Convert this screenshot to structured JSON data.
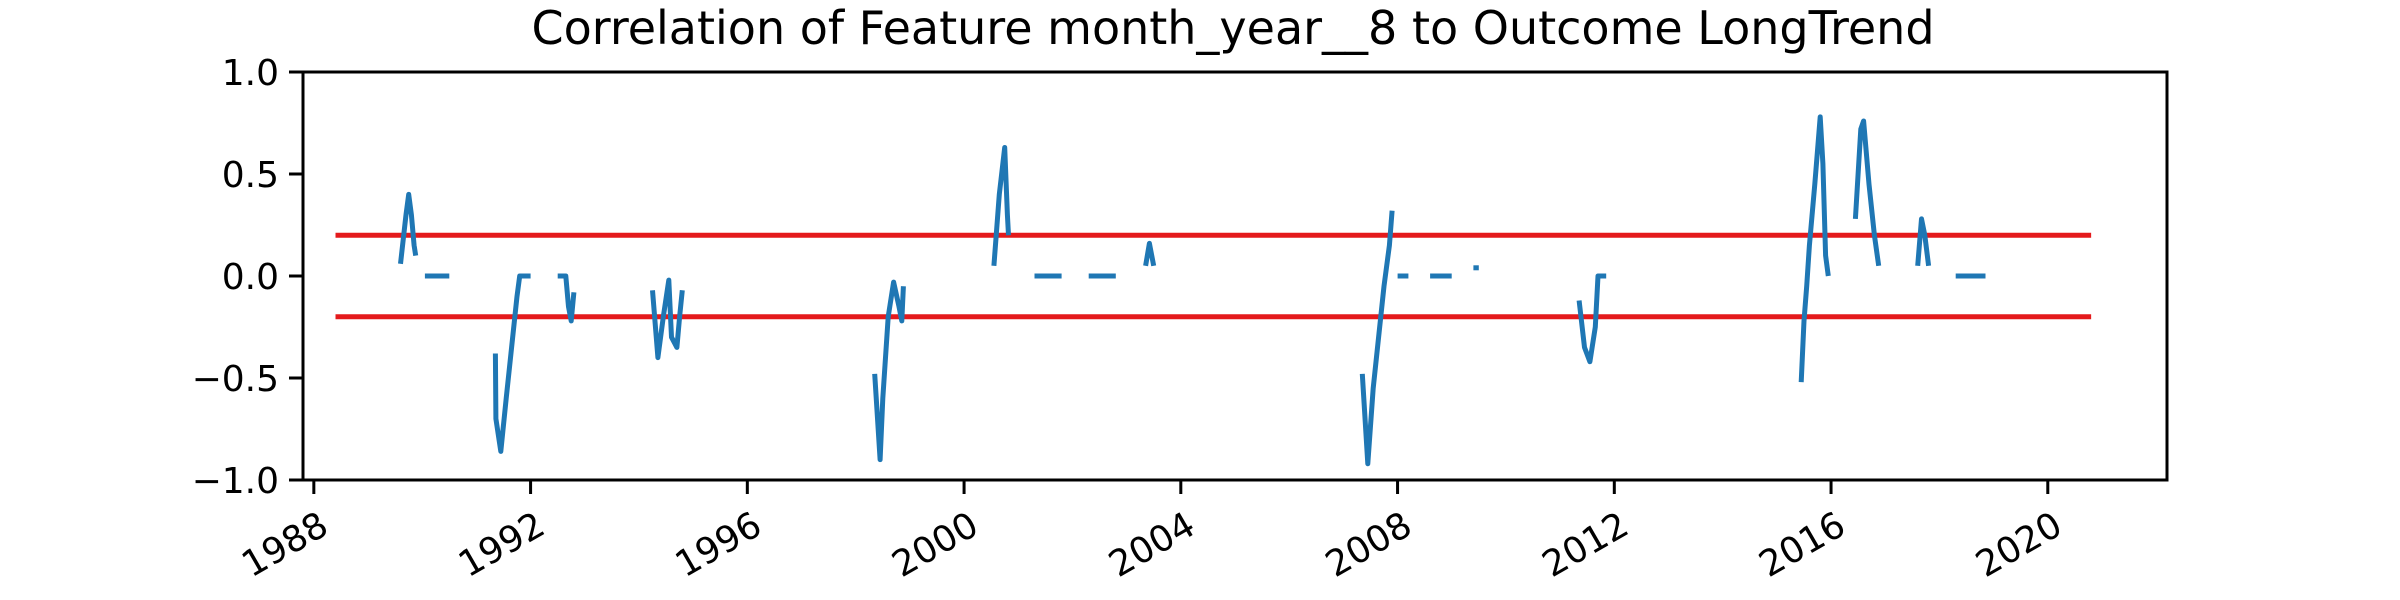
{
  "chart_data": {
    "type": "line",
    "title": "Correlation of Feature month_year__8 to Outcome LongTrend",
    "xlabel": "",
    "ylabel": "",
    "xlim": [
      1987.8,
      2022.2
    ],
    "ylim": [
      -1.0,
      1.0
    ],
    "x_ticks": [
      1988,
      1992,
      1996,
      2000,
      2004,
      2008,
      2012,
      2016,
      2020
    ],
    "x_tick_labels": [
      "1988",
      "1992",
      "1996",
      "2000",
      "2004",
      "2008",
      "2012",
      "2016",
      "2020"
    ],
    "y_ticks": [
      1.0,
      0.5,
      0.0,
      -0.5,
      -1.0
    ],
    "y_tick_labels": [
      "1.0",
      "0.5",
      "0.0",
      "−0.5",
      "−1.0"
    ],
    "grid": false,
    "colors": {
      "series": "#1f77b4",
      "threshold": "#e41a1c"
    },
    "threshold_lines": [
      {
        "y": 0.2,
        "x_range": [
          1988.4,
          2020.8
        ]
      },
      {
        "y": -0.2,
        "x_range": [
          1988.4,
          2020.8
        ]
      }
    ],
    "series": [
      {
        "segments": [
          {
            "x": [
              1989.6,
              1989.7,
              1989.75,
              1989.8,
              1989.85,
              1989.88
            ],
            "y": [
              0.06,
              0.3,
              0.4,
              0.3,
              0.15,
              0.1
            ]
          },
          {
            "x": [
              1990.05,
              1990.5
            ],
            "y": [
              0.0,
              0.0
            ]
          },
          {
            "x": [
              1991.35,
              1991.36,
              1991.45,
              1991.55,
              1991.65,
              1991.75,
              1991.8,
              1992.0
            ],
            "y": [
              -0.38,
              -0.7,
              -0.86,
              -0.6,
              -0.35,
              -0.1,
              0.0,
              0.0
            ]
          },
          {
            "x": [
              1992.5,
              1992.65,
              1992.7,
              1992.75,
              1992.8
            ],
            "y": [
              0.0,
              0.0,
              -0.15,
              -0.22,
              -0.08
            ]
          },
          {
            "x": [
              1994.25,
              1994.35,
              1994.45,
              1994.55,
              1994.6,
              1994.7,
              1994.75,
              1994.8
            ],
            "y": [
              -0.07,
              -0.4,
              -0.2,
              -0.02,
              -0.3,
              -0.35,
              -0.2,
              -0.07
            ]
          },
          {
            "x": [
              1998.35,
              1998.45,
              1998.5,
              1998.6,
              1998.7,
              1998.8,
              1998.85,
              1998.88
            ],
            "y": [
              -0.48,
              -0.9,
              -0.6,
              -0.2,
              -0.03,
              -0.15,
              -0.22,
              -0.05
            ]
          },
          {
            "x": [
              2000.55,
              2000.65,
              2000.75,
              2000.8,
              2000.82
            ],
            "y": [
              0.05,
              0.4,
              0.63,
              0.3,
              0.2
            ]
          },
          {
            "x": [
              2001.3,
              2001.8
            ],
            "y": [
              0.0,
              0.0
            ]
          },
          {
            "x": [
              2002.3,
              2002.8
            ],
            "y": [
              0.0,
              0.0
            ]
          },
          {
            "x": [
              2003.35,
              2003.42,
              2003.5
            ],
            "y": [
              0.05,
              0.16,
              0.05
            ]
          },
          {
            "x": [
              2007.35,
              2007.45,
              2007.55,
              2007.65,
              2007.75,
              2007.85,
              2007.9
            ],
            "y": [
              -0.48,
              -0.92,
              -0.55,
              -0.3,
              -0.05,
              0.15,
              0.32
            ]
          },
          {
            "x": [
              2008.0,
              2008.2
            ],
            "y": [
              0.0,
              0.0
            ]
          },
          {
            "x": [
              2008.6,
              2009.0
            ],
            "y": [
              0.0,
              0.0
            ]
          },
          {
            "x": [
              2009.4,
              2009.5
            ],
            "y": [
              0.04,
              0.04
            ]
          },
          {
            "x": [
              2011.35,
              2011.45,
              2011.55,
              2011.65,
              2011.7,
              2011.85
            ],
            "y": [
              -0.12,
              -0.35,
              -0.42,
              -0.25,
              0.0,
              0.0
            ]
          },
          {
            "x": [
              2015.45,
              2015.5,
              2015.55,
              2015.6,
              2015.7,
              2015.8,
              2015.85,
              2015.9,
              2015.95
            ],
            "y": [
              -0.52,
              -0.22,
              -0.05,
              0.15,
              0.45,
              0.78,
              0.55,
              0.1,
              0.0
            ]
          },
          {
            "x": [
              2016.45,
              2016.55,
              2016.6,
              2016.7,
              2016.8,
              2016.88
            ],
            "y": [
              0.28,
              0.72,
              0.76,
              0.45,
              0.2,
              0.05
            ]
          },
          {
            "x": [
              2017.6,
              2017.67,
              2017.73,
              2017.8
            ],
            "y": [
              0.05,
              0.28,
              0.2,
              0.05
            ]
          },
          {
            "x": [
              2018.3,
              2018.85
            ],
            "y": [
              0.0,
              0.0
            ]
          }
        ]
      }
    ]
  }
}
